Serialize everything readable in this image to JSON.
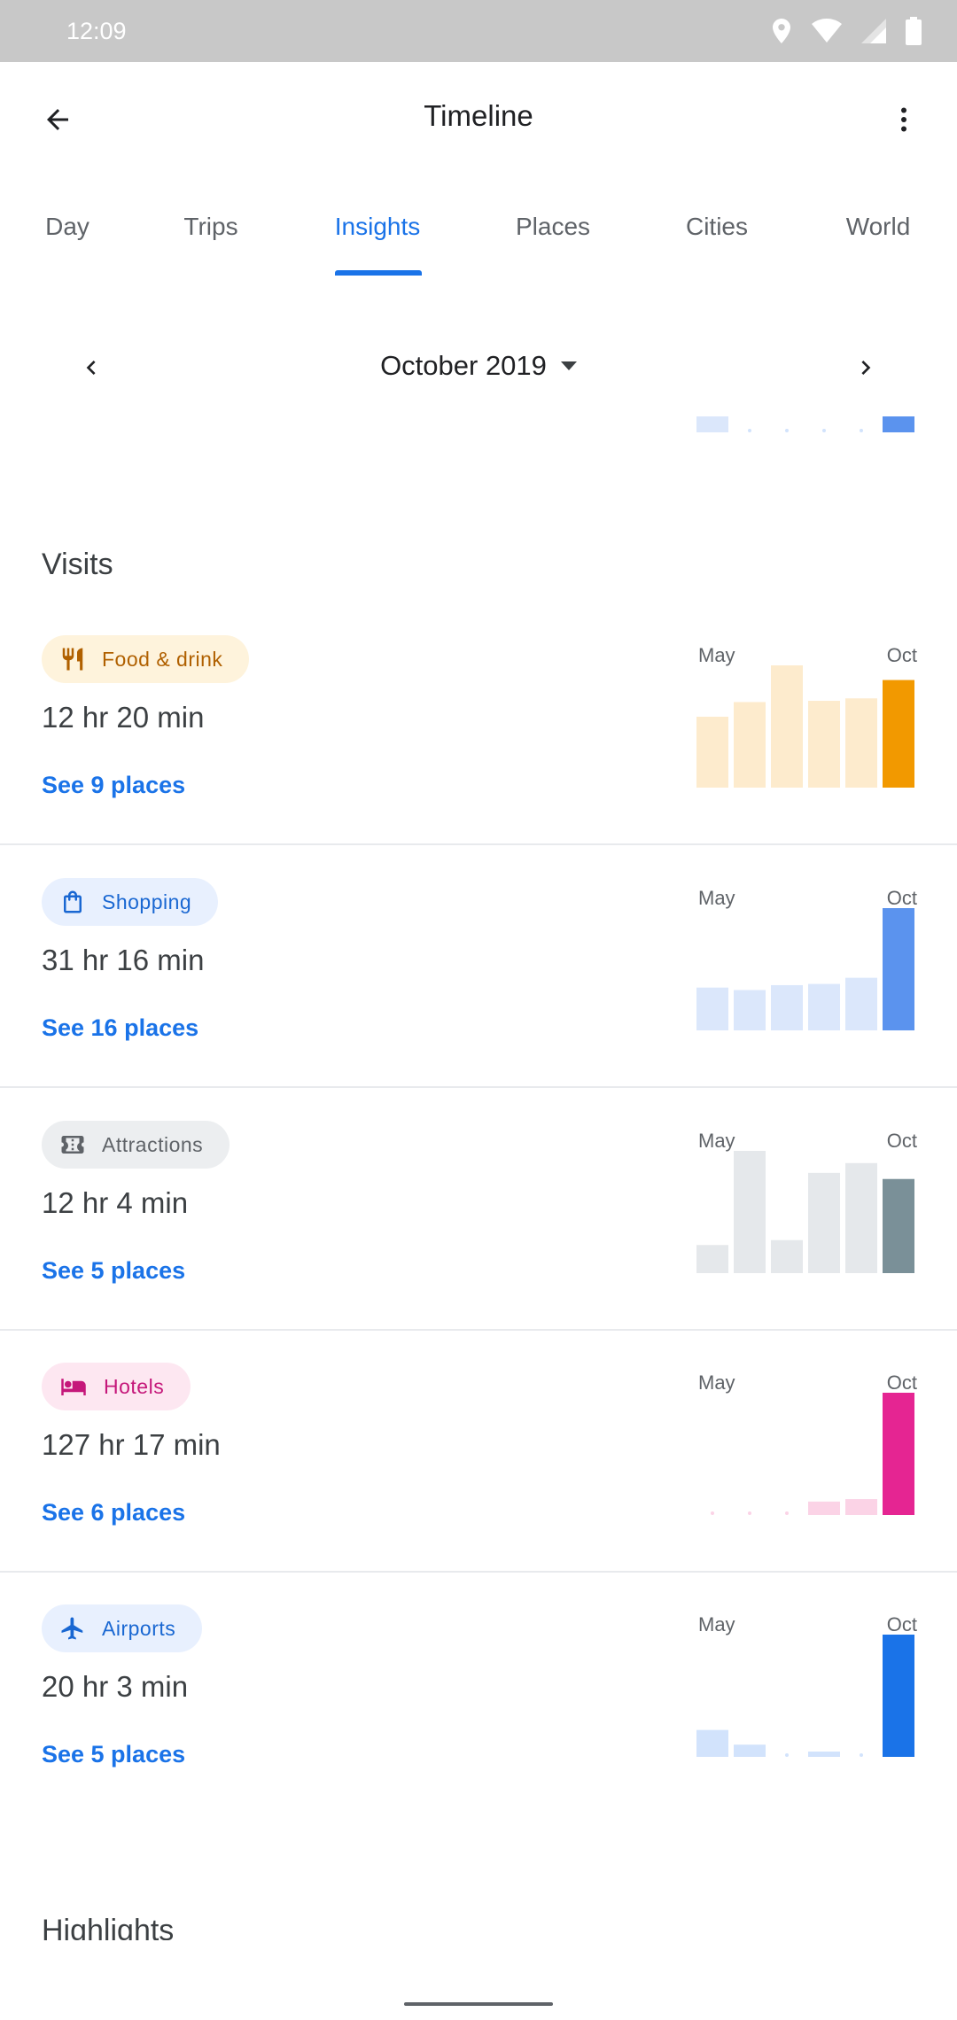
{
  "status_bar": {
    "time": "12:09",
    "icons": [
      "location-icon",
      "wifi-icon",
      "signal-icon",
      "battery-icon"
    ]
  },
  "app_bar": {
    "title": "Timeline",
    "back_icon": "arrow-back-icon",
    "menu_icon": "more-vert-icon"
  },
  "tabs": [
    {
      "label": "Day",
      "active": false
    },
    {
      "label": "Trips",
      "active": false
    },
    {
      "label": "Insights",
      "active": true
    },
    {
      "label": "Places",
      "active": false
    },
    {
      "label": "Cities",
      "active": false
    },
    {
      "label": "World",
      "active": false
    }
  ],
  "month_selector": {
    "label": "October 2019",
    "prev_icon": "chevron-left-icon",
    "next_icon": "chevron-right-icon",
    "dropdown_icon": "arrow-drop-down-icon"
  },
  "previous_section_chart": {
    "values": [
      0.1,
      0,
      0,
      0,
      0,
      0.1
    ],
    "colors": {
      "light": "#dbe7fb",
      "dot": "#d2e3fc",
      "highlight": "#5b93ee"
    }
  },
  "visits": {
    "title": "Visits",
    "chart_start_label": "May",
    "chart_end_label": "Oct",
    "categories": [
      {
        "name": "Food & drink",
        "icon": "restaurant-icon",
        "duration": "12 hr 20 min",
        "link": "See 9 places",
        "chip_bg": "#fef3dc",
        "chip_fg": "#b06000",
        "bar_light": "#fdebcd",
        "bar_dark": "#f29900",
        "values": [
          0.58,
          0.7,
          1.0,
          0.71,
          0.73,
          0.88
        ]
      },
      {
        "name": "Shopping",
        "icon": "shopping-bag-icon",
        "duration": "31 hr 16 min",
        "link": "See 16 places",
        "chip_bg": "#e8f0fe",
        "chip_fg": "#1967d2",
        "bar_light": "#dbe7fb",
        "bar_dark": "#5b93ee",
        "values": [
          0.35,
          0.33,
          0.37,
          0.38,
          0.43,
          1.0
        ]
      },
      {
        "name": "Attractions",
        "icon": "ticket-icon",
        "duration": "12 hr 4 min",
        "link": "See 5 places",
        "chip_bg": "#eceef0",
        "chip_fg": "#5f6368",
        "bar_light": "#e5e8eb",
        "bar_dark": "#7a9098",
        "values": [
          0.23,
          1.0,
          0.27,
          0.82,
          0.9,
          0.77
        ]
      },
      {
        "name": "Hotels",
        "icon": "hotel-bed-icon",
        "duration": "127 hr 17 min",
        "link": "See 6 places",
        "chip_bg": "#fde7f1",
        "chip_fg": "#c5177a",
        "bar_light": "#fbd3e6",
        "bar_dark": "#e52592",
        "values": [
          0,
          0,
          0,
          0.11,
          0.13,
          1.0
        ]
      },
      {
        "name": "Airports",
        "icon": "airplane-icon",
        "duration": "20 hr 3 min",
        "link": "See 5 places",
        "chip_bg": "#e8f0fe",
        "chip_fg": "#1967d2",
        "bar_light": "#d2e3fc",
        "bar_dark": "#1a73e8",
        "values": [
          0.22,
          0.1,
          0,
          0.03,
          0,
          1.0
        ]
      }
    ]
  },
  "highlights": {
    "title": "Highlights"
  }
}
